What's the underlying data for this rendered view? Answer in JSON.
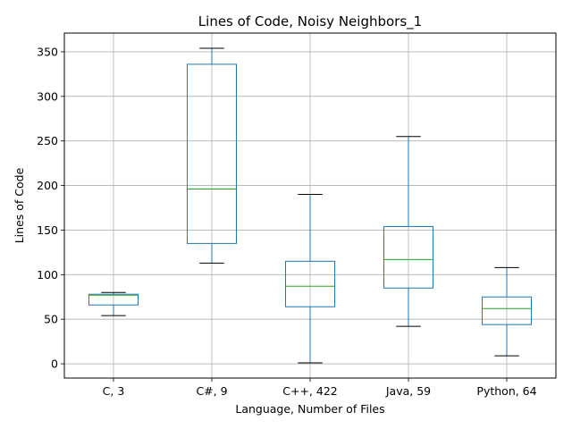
{
  "chart_data": {
    "type": "box",
    "title": "Lines of Code, Noisy Neighbors_1",
    "xlabel": "Language, Number of Files",
    "ylabel": "Lines of Code",
    "ylim": [
      -16,
      371
    ],
    "yticks": [
      0,
      50,
      100,
      150,
      200,
      250,
      300,
      350
    ],
    "grid": true,
    "categories": [
      "C, 3",
      "C#, 9",
      "C++, 422",
      "Java, 59",
      "Python, 64"
    ],
    "boxes": [
      {
        "label": "C, 3",
        "whisker_low": 54,
        "q1": 66,
        "median": 77,
        "q3": 78,
        "whisker_high": 80
      },
      {
        "label": "C#, 9",
        "whisker_low": 113,
        "q1": 135,
        "median": 196,
        "q3": 336,
        "whisker_high": 354
      },
      {
        "label": "C++, 422",
        "whisker_low": 1,
        "q1": 64,
        "median": 87,
        "q3": 115,
        "whisker_high": 190
      },
      {
        "label": "Java, 59",
        "whisker_low": 42,
        "q1": 85,
        "median": 117,
        "q3": 154,
        "whisker_high": 255
      },
      {
        "label": "Python, 64",
        "whisker_low": 9,
        "q1": 44,
        "median": 62,
        "q3": 75,
        "whisker_high": 108
      }
    ],
    "colors": {
      "box": "#1f77b4",
      "median": "#2ca02c",
      "cap": "#000000",
      "grid": "#b0b0b0"
    }
  }
}
